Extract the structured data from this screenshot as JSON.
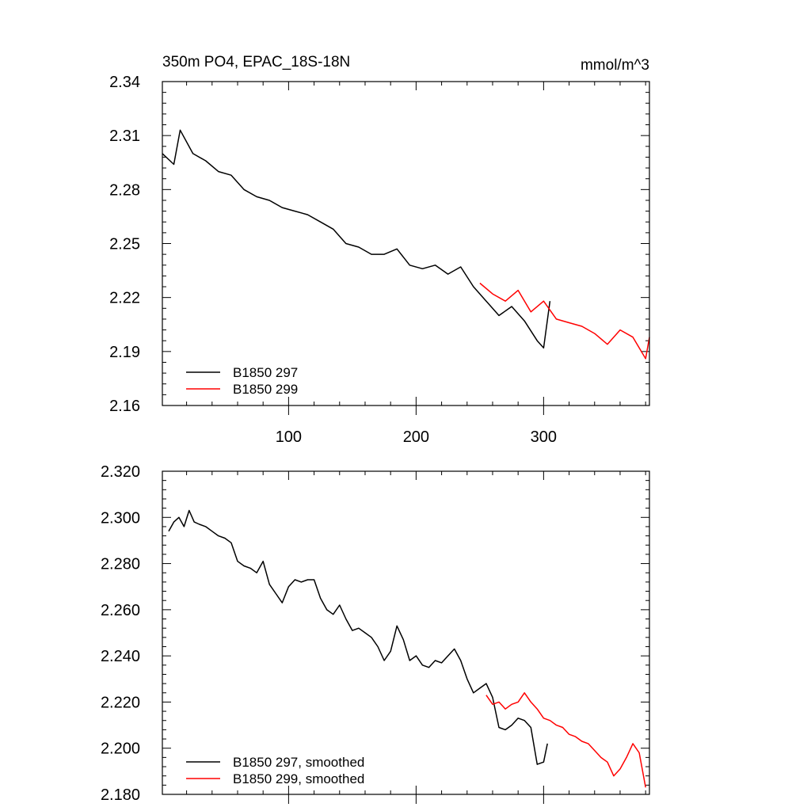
{
  "colors": {
    "run297": "#000000",
    "run299": "#ff0000"
  },
  "chart_data": [
    {
      "type": "line",
      "title_left": "350m PO4, EPAC_18S-18N",
      "title_right": "mmol/m^3",
      "xlim": [
        1,
        383
      ],
      "ylim": [
        2.16,
        2.34
      ],
      "xticks": [
        100,
        200,
        300
      ],
      "xtick_labels": [
        "100",
        "200",
        "300"
      ],
      "yticks": [
        2.16,
        2.19,
        2.22,
        2.25,
        2.28,
        2.31,
        2.34
      ],
      "ytick_labels": [
        "2.16",
        "2.19",
        "2.22",
        "2.25",
        "2.28",
        "2.31",
        "2.34"
      ],
      "legend_position": "bottom-left",
      "series": [
        {
          "name": "B1850 297",
          "color": "#000000",
          "x": [
            1,
            10,
            15,
            25,
            35,
            45,
            55,
            65,
            75,
            85,
            95,
            105,
            115,
            125,
            135,
            145,
            155,
            165,
            175,
            185,
            195,
            205,
            215,
            225,
            235,
            245,
            255,
            265,
            275,
            285,
            295,
            300,
            305
          ],
          "y": [
            2.3,
            2.294,
            2.313,
            2.3,
            2.296,
            2.29,
            2.288,
            2.28,
            2.276,
            2.274,
            2.27,
            2.268,
            2.266,
            2.262,
            2.258,
            2.25,
            2.248,
            2.244,
            2.244,
            2.247,
            2.238,
            2.236,
            2.238,
            2.233,
            2.237,
            2.226,
            2.218,
            2.21,
            2.215,
            2.207,
            2.196,
            2.192,
            2.218
          ]
        },
        {
          "name": "B1850 299",
          "color": "#ff0000",
          "x": [
            250,
            260,
            270,
            280,
            290,
            300,
            310,
            320,
            330,
            340,
            350,
            360,
            370,
            380,
            383
          ],
          "y": [
            2.228,
            2.222,
            2.218,
            2.224,
            2.212,
            2.218,
            2.208,
            2.206,
            2.204,
            2.2,
            2.194,
            2.202,
            2.198,
            2.186,
            2.198
          ]
        }
      ]
    },
    {
      "type": "line",
      "xlim": [
        1,
        383
      ],
      "ylim": [
        2.18,
        2.32
      ],
      "xticks": [
        100,
        200,
        300
      ],
      "yticks": [
        2.18,
        2.2,
        2.22,
        2.24,
        2.26,
        2.28,
        2.3,
        2.32
      ],
      "ytick_labels": [
        "2.180",
        "2.200",
        "2.220",
        "2.240",
        "2.260",
        "2.280",
        "2.300",
        "2.320"
      ],
      "legend_position": "bottom-left",
      "series": [
        {
          "name": "B1850 297, smoothed",
          "color": "#000000",
          "x": [
            6,
            10,
            14,
            18,
            22,
            26,
            30,
            35,
            40,
            45,
            50,
            55,
            60,
            65,
            70,
            75,
            80,
            85,
            90,
            95,
            100,
            105,
            110,
            115,
            120,
            125,
            130,
            135,
            140,
            145,
            150,
            155,
            160,
            165,
            170,
            175,
            180,
            185,
            190,
            195,
            200,
            205,
            210,
            215,
            220,
            225,
            230,
            235,
            240,
            245,
            250,
            255,
            260,
            265,
            270,
            275,
            280,
            285,
            290,
            295,
            300,
            303
          ],
          "y": [
            2.294,
            2.298,
            2.3,
            2.296,
            2.303,
            2.298,
            2.297,
            2.296,
            2.294,
            2.292,
            2.291,
            2.289,
            2.281,
            2.279,
            2.278,
            2.276,
            2.281,
            2.271,
            2.267,
            2.263,
            2.27,
            2.273,
            2.272,
            2.273,
            2.273,
            2.265,
            2.26,
            2.258,
            2.262,
            2.256,
            2.251,
            2.252,
            2.25,
            2.248,
            2.244,
            2.238,
            2.242,
            2.253,
            2.247,
            2.238,
            2.24,
            2.236,
            2.235,
            2.238,
            2.237,
            2.24,
            2.243,
            2.238,
            2.23,
            2.224,
            2.226,
            2.228,
            2.222,
            2.209,
            2.208,
            2.21,
            2.213,
            2.212,
            2.209,
            2.193,
            2.194,
            2.202
          ]
        },
        {
          "name": "B1850 299, smoothed",
          "color": "#ff0000",
          "x": [
            255,
            260,
            265,
            270,
            275,
            280,
            285,
            290,
            295,
            300,
            305,
            310,
            315,
            320,
            325,
            330,
            335,
            340,
            345,
            350,
            355,
            360,
            365,
            370,
            375,
            380
          ],
          "y": [
            2.223,
            2.219,
            2.22,
            2.217,
            2.219,
            2.22,
            2.224,
            2.22,
            2.217,
            2.213,
            2.212,
            2.21,
            2.209,
            2.206,
            2.205,
            2.203,
            2.202,
            2.199,
            2.196,
            2.194,
            2.188,
            2.191,
            2.196,
            2.202,
            2.198,
            2.183
          ]
        }
      ]
    }
  ]
}
